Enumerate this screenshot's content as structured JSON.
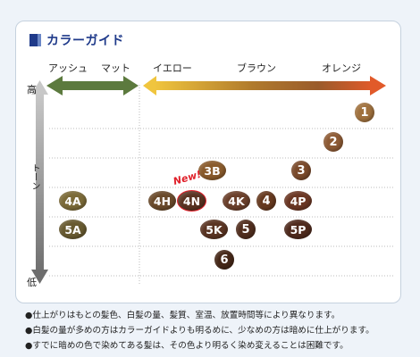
{
  "title": "カラーガイド",
  "top_axis": {
    "ash": "アッシュ",
    "matte": "マット",
    "yellow": "イエロー",
    "brown": "ブラウン",
    "orange": "オレンジ"
  },
  "tone_axis": {
    "high": "高",
    "tone": "トーン",
    "low": "低"
  },
  "colors": {
    "green_arrow": "#5c7a3e",
    "gold": "#e8b73a",
    "brown": "#9a5b2b",
    "orange_red": "#e15a2a",
    "tone_arrow": "#8c8c8c",
    "title": "#1f3a8a",
    "new_badge": "#e0202a"
  },
  "new_badge": "New!",
  "chips": [
    {
      "label": "1",
      "color": "#a0713e"
    },
    {
      "label": "2",
      "color": "#8d5a34"
    },
    {
      "label": "3B",
      "color": "#8a5b2c"
    },
    {
      "label": "3",
      "color": "#7a4a2b"
    },
    {
      "label": "4A",
      "color": "#7b6a38"
    },
    {
      "label": "4H",
      "color": "#6a4a2b"
    },
    {
      "label": "4N",
      "color": "#5a3322"
    },
    {
      "label": "4K",
      "color": "#6a3f2a"
    },
    {
      "label": "4",
      "color": "#66391f"
    },
    {
      "label": "4P",
      "color": "#6b3724"
    },
    {
      "label": "5A",
      "color": "#685a30"
    },
    {
      "label": "5K",
      "color": "#5a3422"
    },
    {
      "label": "5",
      "color": "#512e1e"
    },
    {
      "label": "5P",
      "color": "#4f2a1d"
    },
    {
      "label": "6",
      "color": "#452717"
    }
  ],
  "notes": [
    "●仕上がりはもとの髪色、白髪の量、髪質、室温、放置時間等により異なります。",
    "●白髪の量が多めの方はカラーガイドよりも明るめに、少なめの方は暗めに仕上がります。",
    "●すでに暗めの色で染めてある髪は、その色より明るく染め変えることは困難です。"
  ]
}
